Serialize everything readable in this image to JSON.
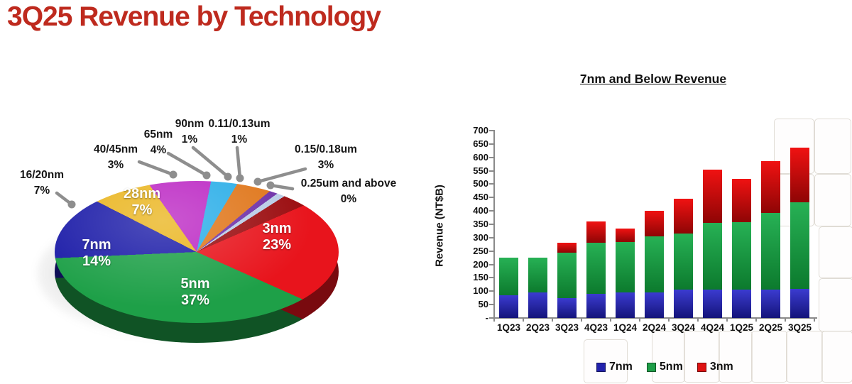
{
  "header": {
    "title": "3Q25 Revenue by Technology",
    "title_color": "#BE2A1E"
  },
  "chart_data": [
    {
      "type": "pie",
      "style": "3d",
      "title": "3Q25 Revenue by Technology",
      "unit": "%",
      "start_angle_deg": 49,
      "slices": [
        {
          "label": "3nm",
          "value": 23,
          "color": "#E8141C",
          "label_placement": "inside"
        },
        {
          "label": "5nm",
          "value": 37,
          "color": "#1EA048",
          "label_placement": "inside"
        },
        {
          "label": "7nm",
          "value": 14,
          "color": "#1C1CA8",
          "label_placement": "inside"
        },
        {
          "label": "16/20nm",
          "value": 7,
          "color": "#EAB51F",
          "label_placement": "callout"
        },
        {
          "label": "28nm",
          "value": 7,
          "color": "#BC28C4",
          "label_placement": "inside"
        },
        {
          "label": "40/45nm",
          "value": 3,
          "color": "#2BAEE8",
          "label_placement": "callout"
        },
        {
          "label": "65nm",
          "value": 4,
          "color": "#E0761A",
          "label_placement": "callout"
        },
        {
          "label": "90nm",
          "value": 1,
          "color": "#6E30A8",
          "label_placement": "callout"
        },
        {
          "label": "0.11/0.13um",
          "value": 1,
          "color": "#B9CCE6",
          "label_placement": "callout"
        },
        {
          "label": "0.15/0.18um",
          "value": 3,
          "color": "#9B0D10",
          "label_placement": "callout"
        },
        {
          "label": "0.25um and above",
          "value": 0,
          "color": "#8C8C8C",
          "label_placement": "callout"
        }
      ],
      "callout_line_color": "#8E8E8E"
    },
    {
      "type": "bar",
      "stacked": true,
      "title": "7nm and Below Revenue",
      "ylabel": "Revenue (NT$B)",
      "ylim": [
        0,
        700
      ],
      "ytick_step": 50,
      "zero_tick_label": "-",
      "grid": false,
      "legend_position": "bottom",
      "categories": [
        "1Q23",
        "2Q23",
        "3Q23",
        "4Q23",
        "1Q24",
        "2Q24",
        "3Q24",
        "4Q24",
        "1Q25",
        "2Q25",
        "3Q25"
      ],
      "series": [
        {
          "name": "7nm",
          "color": "#2222AC",
          "color_top": "#3B3BD0",
          "color_bottom": "#14147A",
          "values": [
            85,
            95,
            75,
            90,
            95,
            95,
            105,
            105,
            105,
            107,
            110
          ]
        },
        {
          "name": "5nm",
          "color": "#1E9E48",
          "color_top": "#27B155",
          "color_bottom": "#0C7A2D",
          "values": [
            140,
            130,
            170,
            190,
            190,
            210,
            210,
            250,
            253,
            285,
            322
          ]
        },
        {
          "name": "3nm",
          "color": "#DE1212",
          "color_top": "#F01212",
          "color_bottom": "#8E0505",
          "values": [
            0,
            0,
            35,
            80,
            50,
            95,
            130,
            200,
            162,
            193,
            205
          ]
        }
      ]
    }
  ]
}
